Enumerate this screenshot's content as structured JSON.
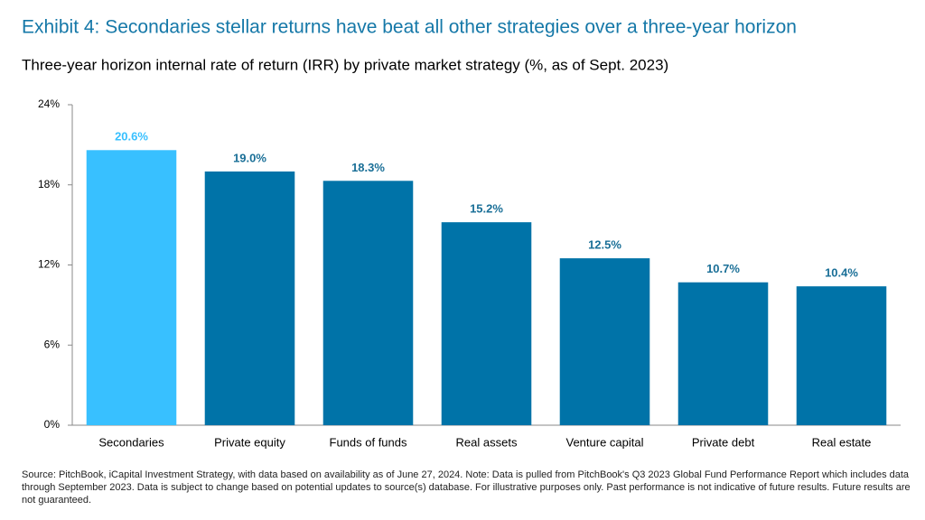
{
  "chart_data": {
    "type": "bar",
    "title": "Exhibit 4: Secondaries stellar returns have beat all other strategies over a three-year horizon",
    "subtitle": "Three-year horizon internal rate of return (IRR) by private market strategy (%, as of Sept. 2023)",
    "categories": [
      "Secondaries",
      "Private equity",
      "Funds of funds",
      "Real assets",
      "Venture capital",
      "Private debt",
      "Real estate"
    ],
    "values": [
      20.6,
      19.0,
      18.3,
      15.2,
      12.5,
      10.7,
      10.4
    ],
    "value_labels": [
      "20.6%",
      "19.0%",
      "18.3%",
      "15.2%",
      "12.5%",
      "10.7%",
      "10.4%"
    ],
    "colors": [
      "#38c0ff",
      "#0073a8",
      "#0073a8",
      "#0073a8",
      "#0073a8",
      "#0073a8",
      "#0073a8"
    ],
    "ylim": [
      0,
      24
    ],
    "yticks": [
      {
        "value": 0,
        "label": "0%"
      },
      {
        "value": 6,
        "label": "6%"
      },
      {
        "value": 12,
        "label": "12%"
      },
      {
        "value": 18,
        "label": "18%"
      },
      {
        "value": 24,
        "label": "24%"
      }
    ],
    "grid": false,
    "source": "Source: PitchBook, iCapital Investment Strategy, with data based on availability as of June 27, 2024. Note: Data is pulled from PitchBook's Q3 2023 Global Fund Performance Report which includes data through September 2023. Data is subject to change based on potential updates to source(s) database. For illustrative purposes only. Past performance is not indicative of future results. Future results are not guaranteed."
  }
}
